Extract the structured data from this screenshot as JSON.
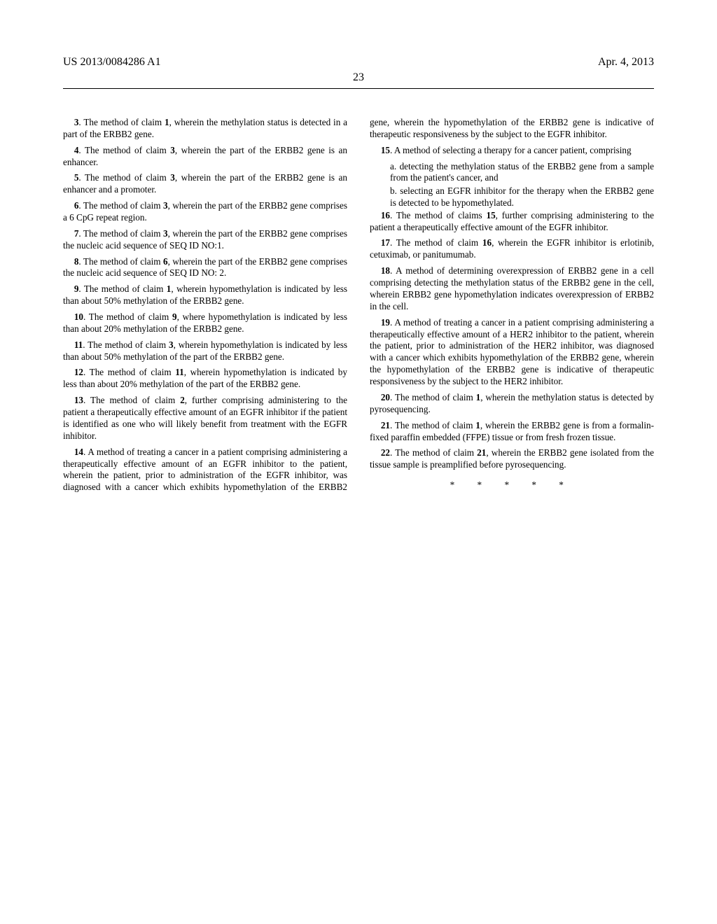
{
  "header": {
    "patent_no": "US 2013/0084286 A1",
    "date": "Apr. 4, 2013",
    "page_number": "23"
  },
  "claims": {
    "c3": {
      "num": "3",
      "text": ". The method of claim ",
      "ref": "1",
      "rest": ", wherein the methylation status is detected in a part of the ERBB2 gene."
    },
    "c4": {
      "num": "4",
      "text": ". The method of claim ",
      "ref": "3",
      "rest": ", wherein the part of the ERBB2 gene is an enhancer."
    },
    "c5": {
      "num": "5",
      "text": ". The method of claim ",
      "ref": "3",
      "rest": ", wherein the part of the ERBB2 gene is an enhancer and a promoter."
    },
    "c6": {
      "num": "6",
      "text": ". The method of claim ",
      "ref": "3",
      "rest": ", wherein the part of the ERBB2 gene comprises a 6 CpG repeat region."
    },
    "c7": {
      "num": "7",
      "text": ". The method of claim ",
      "ref": "3",
      "rest": ", wherein the part of the ERBB2 gene comprises the nucleic acid sequence of SEQ ID NO:1."
    },
    "c8": {
      "num": "8",
      "text": ". The method of claim ",
      "ref": "6",
      "rest": ", wherein the part of the ERBB2 gene comprises the nucleic acid sequence of SEQ ID NO: 2."
    },
    "c9": {
      "num": "9",
      "text": ". The method of claim ",
      "ref": "1",
      "rest": ", wherein hypomethylation is indicated by less than about 50% methylation of the ERBB2 gene."
    },
    "c10": {
      "num": "10",
      "text": ". The method of claim ",
      "ref": "9",
      "rest": ", where hypomethylation is indicated by less than about 20% methylation of the ERBB2 gene."
    },
    "c11": {
      "num": "11",
      "text": ". The method of claim ",
      "ref": "3",
      "rest": ", wherein hypomethylation is indicated by less than about 50% methylation of the part of the ERBB2 gene."
    },
    "c12": {
      "num": "12",
      "text": ". The method of claim ",
      "ref": "11",
      "rest": ", wherein hypomethylation is indicated by less than about 20% methylation of the part of the ERBB2 gene."
    },
    "c13": {
      "num": "13",
      "text": ". The method of claim ",
      "ref": "2",
      "rest": ", further comprising administering to the patient a therapeutically effective amount of an EGFR inhibitor if the patient is identified as one who will likely benefit from treatment with the EGFR inhibitor."
    },
    "c14": {
      "num": "14",
      "text": ". A method of treating a cancer in a patient comprising administering a therapeutically effective amount of an EGFR inhibitor to the patient, wherein the patient, prior to administration of the EGFR inhibitor, was diagnosed with a cancer which exhibits hypomethylation of the ERBB2 gene, wherein the hypomethylation of the ERBB2 gene is indicative of therapeutic responsiveness by the subject to the EGFR inhibitor."
    },
    "c15": {
      "num": "15",
      "text": ". A method of selecting a therapy for a cancer patient, comprising",
      "a": "a. detecting the methylation status of the ERBB2 gene from a sample from the patient's cancer, and",
      "b": "b. selecting an EGFR inhibitor for the therapy when the ERBB2 gene is detected to be hypomethylated."
    },
    "c16": {
      "num": "16",
      "text": ". The method of claims ",
      "ref": "15",
      "rest": ", further comprising administering to the patient a therapeutically effective amount of the EGFR inhibitor."
    },
    "c17": {
      "num": "17",
      "text": ". The method of claim ",
      "ref": "16",
      "rest": ", wherein the EGFR inhibitor is erlotinib, cetuximab, or panitumumab."
    },
    "c18": {
      "num": "18",
      "text": ". A method of determining overexpression of ERBB2 gene in a cell comprising detecting the methylation status of the ERBB2 gene in the cell, wherein ERBB2 gene hypomethylation indicates overexpression of ERBB2 in the cell."
    },
    "c19": {
      "num": "19",
      "text": ". A method of treating a cancer in a patient comprising administering a therapeutically effective amount of a HER2 inhibitor to the patient, wherein the patient, prior to administration of the HER2 inhibitor, was diagnosed with a cancer which exhibits hypomethylation of the ERBB2 gene, wherein the hypomethylation of the ERBB2 gene is indicative of therapeutic responsiveness by the subject to the HER2 inhibitor."
    },
    "c20": {
      "num": "20",
      "text": ". The method of claim ",
      "ref": "1",
      "rest": ", wherein the methylation status is detected by pyrosequencing."
    },
    "c21": {
      "num": "21",
      "text": ". The method of claim ",
      "ref": "1",
      "rest": ", wherein the ERBB2 gene is from a formalin-fixed paraffin embedded (FFPE) tissue or from fresh frozen tissue."
    },
    "c22": {
      "num": "22",
      "text": ". The method of claim ",
      "ref": "21",
      "rest": ", wherein the ERBB2 gene isolated from the tissue sample is preamplified before pyrosequencing."
    }
  },
  "stars": "*  *  *  *  *"
}
